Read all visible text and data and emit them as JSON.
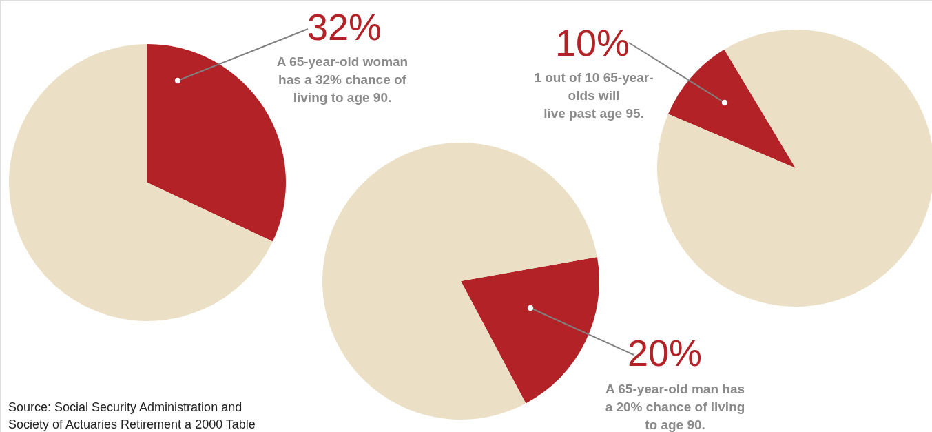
{
  "chart_data": [
    {
      "type": "pie",
      "categories": [
        null,
        null
      ],
      "values": [
        32,
        68
      ],
      "colors": [
        "#b22226",
        "#ebe0c6"
      ],
      "annotations": [
        "32%",
        "A 65-year-old woman\nhas a 32% chance of\nliving to age 90.",
        "Source: Social Security Administration and\nSociety of Actuaries Retirement a 2000 Table"
      ]
    },
    {
      "type": "pie",
      "categories": [
        null,
        null
      ],
      "values": [
        20,
        80
      ],
      "colors": [
        "#b22226",
        "#ebe0c6"
      ],
      "annotations": [
        "20%",
        "A 65-year-old man has\na 20% chance of living\nto age 90."
      ]
    },
    {
      "type": "pie",
      "categories": [
        null,
        null
      ],
      "values": [
        10,
        90
      ],
      "colors": [
        "#b22226",
        "#ebe0c6"
      ],
      "annotations": [
        "10%",
        "1 out of 10 65-year-\nolds will\nlive past age 95."
      ]
    }
  ]
}
